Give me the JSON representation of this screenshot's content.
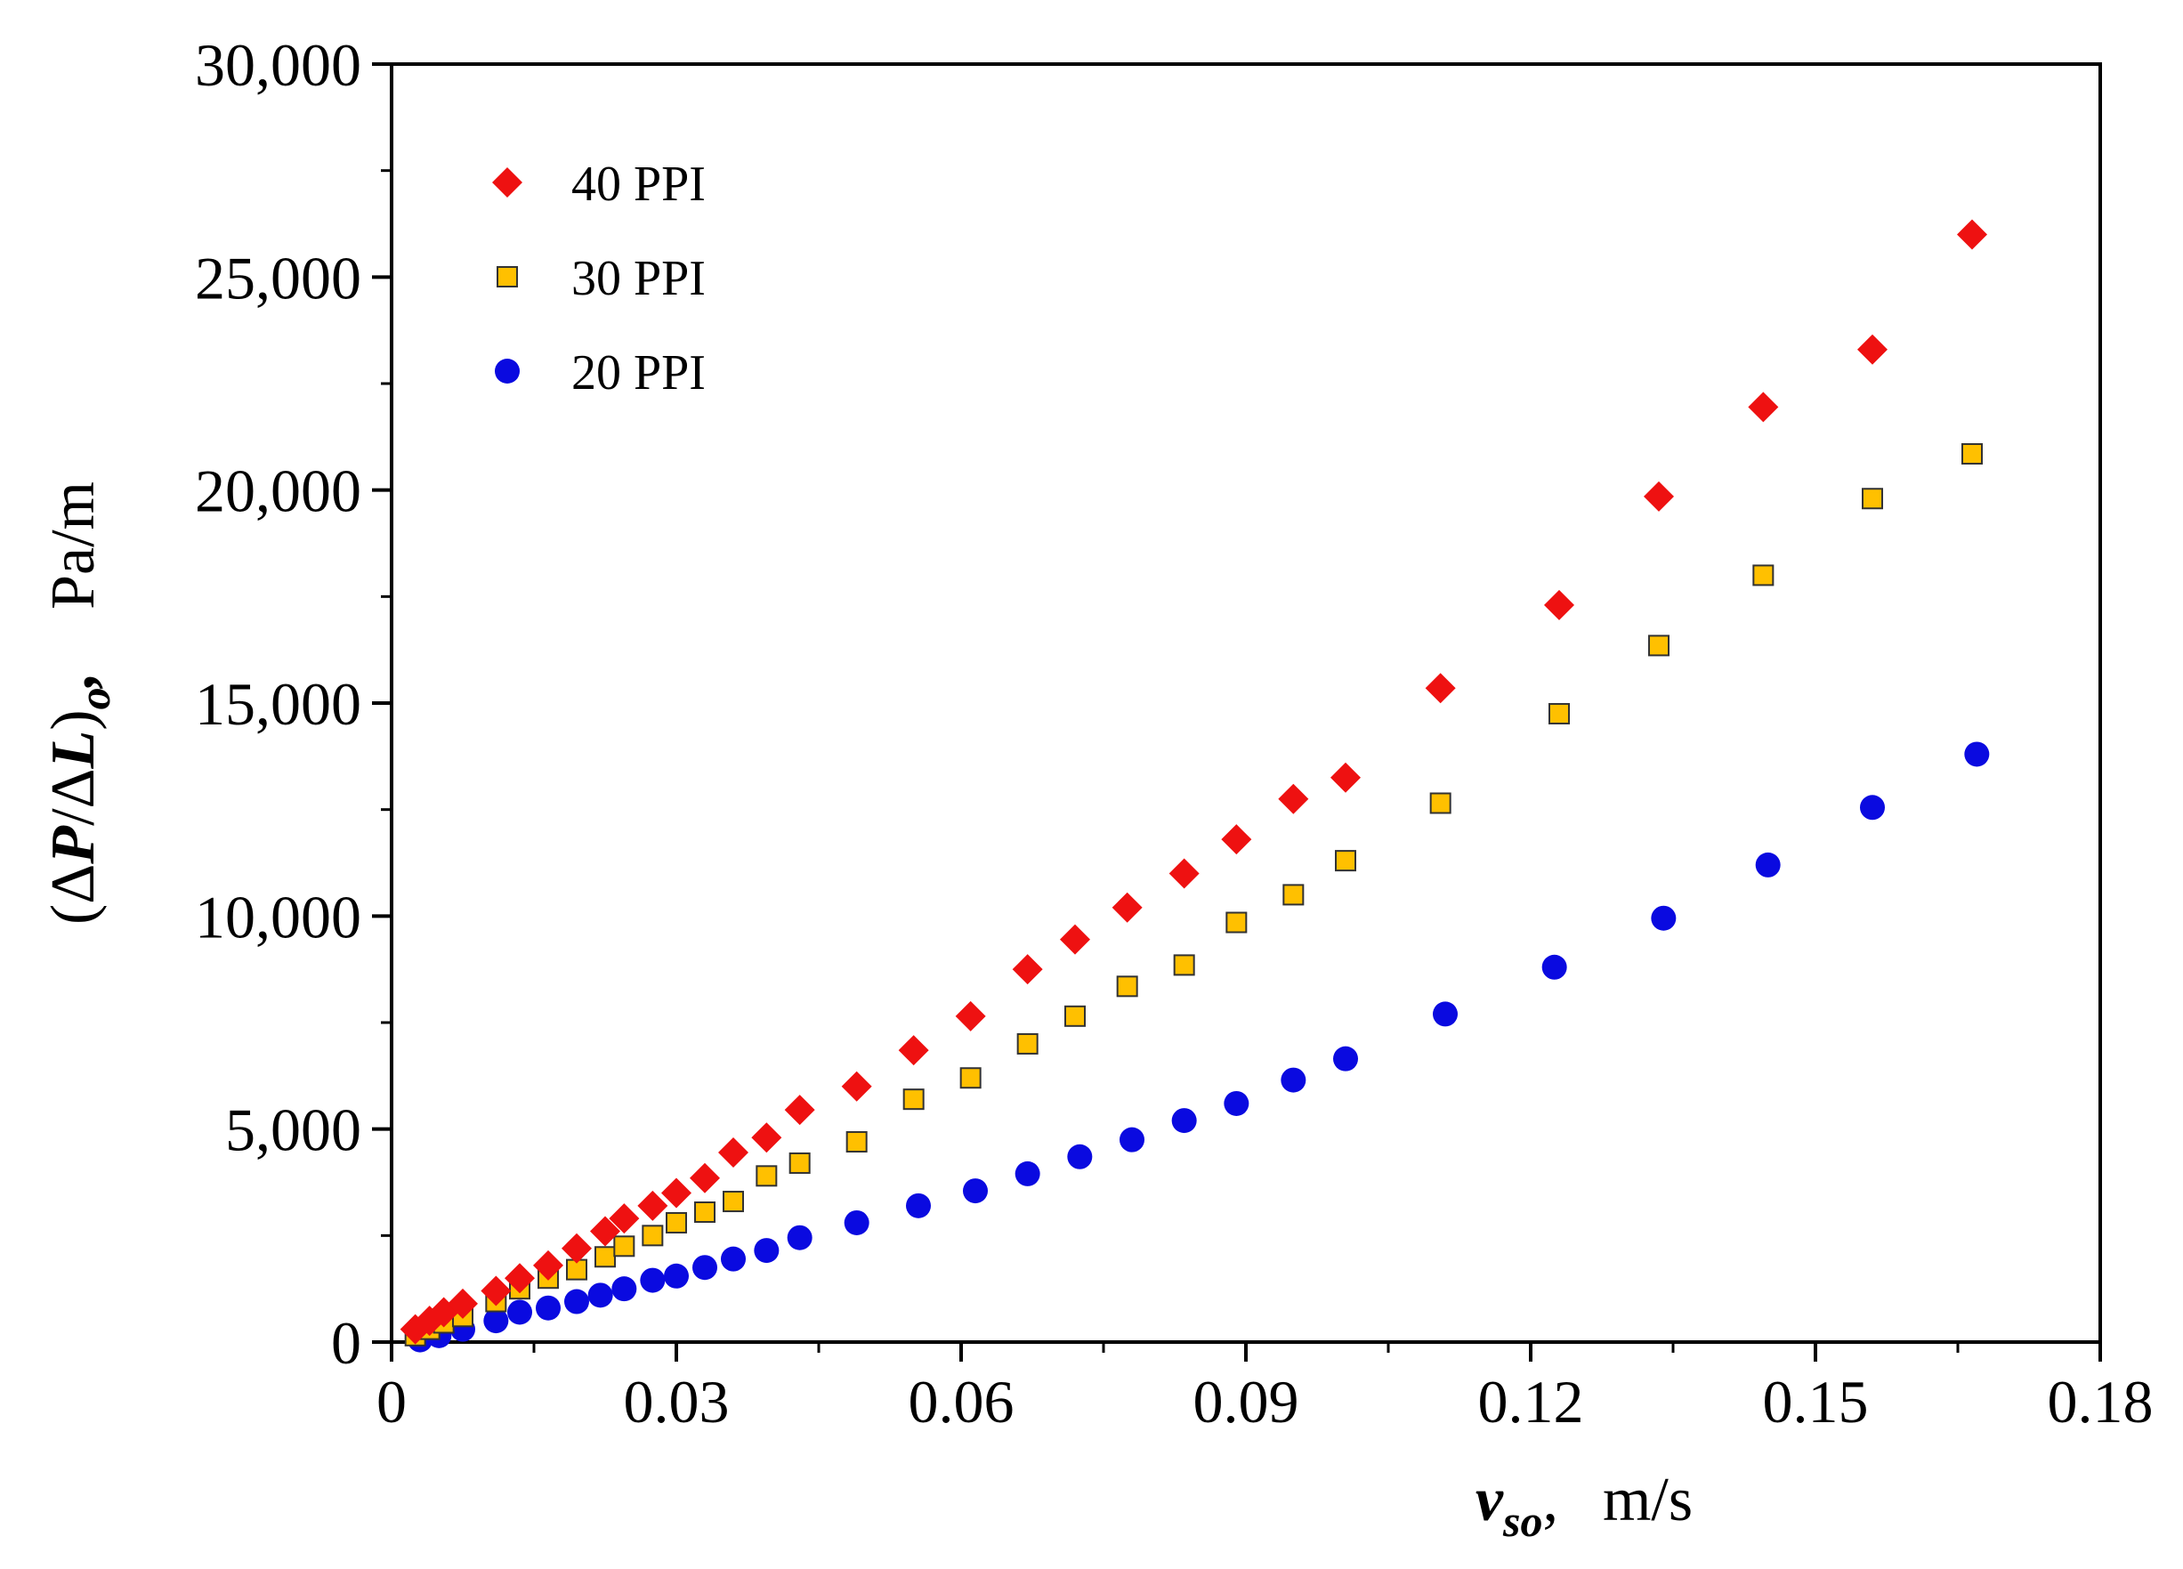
{
  "chart_data": {
    "type": "scatter",
    "title": "",
    "xlabel": {
      "prefix": "",
      "variable": "v",
      "subscript": "so",
      "suffix": ",",
      "unit": "m/s"
    },
    "ylabel": {
      "prefix": "(Δ",
      "variable": "P",
      "mid": "/Δ",
      "variable2": "L",
      "close": ")",
      "subscript": "o",
      "suffix": ",",
      "unit": "Pa/m"
    },
    "xlim": [
      0,
      0.18
    ],
    "ylim": [
      0,
      30000
    ],
    "x_ticks": [
      0,
      0.03,
      0.06,
      0.09,
      0.12,
      0.15,
      0.18
    ],
    "x_tick_labels": [
      "0",
      "0.03",
      "0.06",
      "0.09",
      "0.12",
      "0.15",
      "0.18"
    ],
    "y_ticks": [
      0,
      5000,
      10000,
      15000,
      20000,
      25000,
      30000
    ],
    "y_tick_labels": [
      "0",
      "5,000",
      "10,000",
      "15,000",
      "20,000",
      "25,000",
      "30,000"
    ],
    "grid": false,
    "legend_position": "top-left",
    "series": [
      {
        "name": "40 PPI",
        "marker": "diamond",
        "color": "#ee1111",
        "x": [
          0.0025,
          0.004,
          0.0055,
          0.0075,
          0.011,
          0.0135,
          0.0165,
          0.0195,
          0.0225,
          0.0245,
          0.0275,
          0.03,
          0.033,
          0.036,
          0.0395,
          0.043,
          0.049,
          0.055,
          0.061,
          0.067,
          0.072,
          0.0775,
          0.0835,
          0.089,
          0.095,
          0.1005,
          0.1105,
          0.123,
          0.1335,
          0.1445,
          0.156,
          0.1665
        ],
        "y": [
          300,
          500,
          700,
          900,
          1200,
          1500,
          1800,
          2200,
          2600,
          2900,
          3200,
          3500,
          3850,
          4450,
          4800,
          5450,
          6000,
          6850,
          7650,
          8750,
          9450,
          10200,
          11000,
          11800,
          12750,
          13250,
          15350,
          17300,
          19850,
          21950,
          23300,
          26000
        ]
      },
      {
        "name": "30 PPI",
        "marker": "square",
        "color": "#ffc000",
        "x": [
          0.0025,
          0.004,
          0.0055,
          0.0075,
          0.011,
          0.0135,
          0.0165,
          0.0195,
          0.0225,
          0.0245,
          0.0275,
          0.03,
          0.033,
          0.036,
          0.0395,
          0.043,
          0.049,
          0.055,
          0.061,
          0.067,
          0.072,
          0.0775,
          0.0835,
          0.089,
          0.095,
          0.1005,
          0.1105,
          0.123,
          0.1335,
          0.1445,
          0.156,
          0.1665
        ],
        "y": [
          150,
          300,
          450,
          600,
          950,
          1250,
          1500,
          1700,
          2000,
          2250,
          2500,
          2800,
          3050,
          3300,
          3900,
          4200,
          4700,
          5700,
          6200,
          7000,
          7650,
          8350,
          8850,
          9850,
          10500,
          11300,
          12650,
          14750,
          16350,
          18000,
          19800,
          20850
        ]
      },
      {
        "name": "20 PPI",
        "marker": "circle",
        "color": "#0a0ae0",
        "x": [
          0.003,
          0.005,
          0.0075,
          0.011,
          0.0135,
          0.0165,
          0.0195,
          0.022,
          0.0245,
          0.0275,
          0.03,
          0.033,
          0.036,
          0.0395,
          0.043,
          0.049,
          0.0555,
          0.0615,
          0.067,
          0.0725,
          0.078,
          0.0835,
          0.089,
          0.095,
          0.1005,
          0.111,
          0.1225,
          0.134,
          0.145,
          0.156,
          0.167
        ],
        "y": [
          50,
          150,
          300,
          500,
          700,
          800,
          950,
          1100,
          1250,
          1450,
          1550,
          1750,
          1950,
          2150,
          2450,
          2800,
          3200,
          3550,
          3950,
          4350,
          4750,
          5200,
          5600,
          6150,
          6650,
          7700,
          8800,
          9950,
          11200,
          12550,
          13800
        ]
      }
    ]
  }
}
